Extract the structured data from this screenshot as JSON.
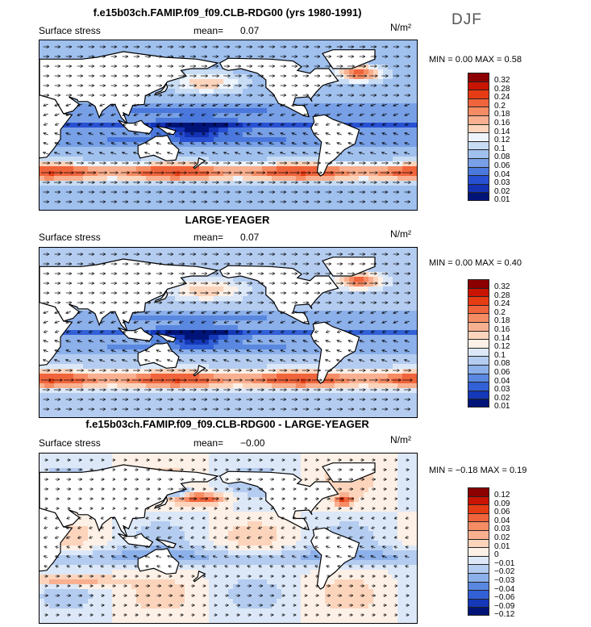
{
  "page": {
    "season": "DJF",
    "panels": [
      {
        "title": "f.e15b03ch.FAMIP.f09_f09.CLB-RDG00 (yrs 1980-1991)",
        "variable": "Surface stress",
        "mean_label": "mean=",
        "mean_value": "0.07",
        "units": "N/m²",
        "range_text": "MIN =  0.00 MAX =  0.58",
        "kind": "abs",
        "levels": [
          "0.32",
          "0.28",
          "0.24",
          "0.2",
          "0.18",
          "0.16",
          "0.14",
          "0.12",
          "0.1",
          "0.08",
          "0.06",
          "0.04",
          "0.03",
          "0.02",
          "0.01"
        ],
        "colors": [
          "#8b0000",
          "#c81400",
          "#e63c14",
          "#f0643c",
          "#f58c64",
          "#f8b090",
          "#fcd4bc",
          "#eef4fb",
          "#c8dcf4",
          "#a0c0ee",
          "#78a0e6",
          "#4a78dc",
          "#2850d2",
          "#1432b4",
          "#001478"
        ]
      },
      {
        "title": "LARGE-YEAGER",
        "variable": "Surface stress",
        "mean_label": "mean=",
        "mean_value": "0.07",
        "units": "N/m²",
        "range_text": "MIN =  0.00 MAX =  0.40",
        "kind": "abs",
        "levels": [
          "0.32",
          "0.28",
          "0.24",
          "0.2",
          "0.18",
          "0.16",
          "0.14",
          "0.12",
          "0.1",
          "0.08",
          "0.06",
          "0.04",
          "0.03",
          "0.02",
          "0.01"
        ],
        "colors": [
          "#8b0000",
          "#c81400",
          "#e63c14",
          "#f0643c",
          "#f58c64",
          "#f8b090",
          "#fcd4bc",
          "#fdf0e6",
          "#dce8f8",
          "#b4ccf0",
          "#8cb0ea",
          "#5a88e0",
          "#3260d6",
          "#1438b8",
          "#001478"
        ]
      },
      {
        "title": "f.e15b03ch.FAMIP.f09_f09.CLB-RDG00 - LARGE-YEAGER",
        "variable": "Surface stress",
        "mean_label": "mean=",
        "mean_value": "−0.00",
        "units": "N/m²",
        "range_text": "MIN = −0.18 MAX =  0.19",
        "kind": "diff",
        "levels": [
          "0.12",
          "0.09",
          "0.06",
          "0.04",
          "0.03",
          "0.02",
          "0.01",
          "0",
          "−0.01",
          "−0.02",
          "−0.03",
          "−0.04",
          "−0.06",
          "−0.09",
          "−0.12"
        ],
        "colors": [
          "#8b0000",
          "#c81400",
          "#e63c14",
          "#f0643c",
          "#f58c64",
          "#f8b090",
          "#fcd4bc",
          "#fdf0e6",
          "#dce8f8",
          "#b4ccf0",
          "#8cb0ea",
          "#5a88e0",
          "#3260d6",
          "#1438b8",
          "#001478"
        ]
      }
    ]
  }
}
